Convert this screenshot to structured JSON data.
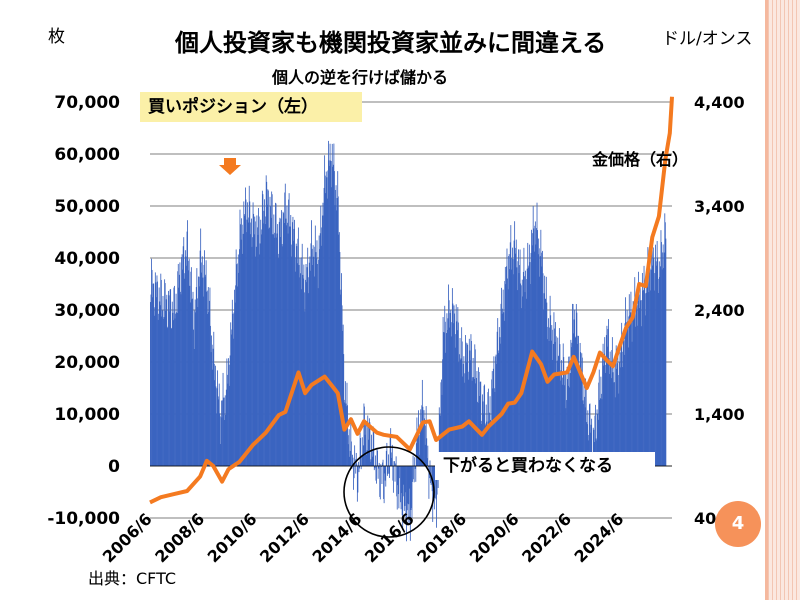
{
  "header": {
    "unit_left": "枚",
    "unit_right": "ドル/オンス",
    "title": "個人投資家も機関投資家並みに間違える",
    "subtitle": "個人の逆を行けば儲かる"
  },
  "annotations": {
    "buy_position_label": "買いポジション（左）",
    "gold_price_label": "金価格（右）",
    "dip_label": "下がると買わなくなる"
  },
  "footer": {
    "source": "出典：CFTC",
    "page_number": "4"
  },
  "colors": {
    "bars": "#3b64c0",
    "line": "#f47a20",
    "grid": "#000000",
    "callout_bg": "#fbf0a8",
    "accent": "#f6925a"
  },
  "chart_data": {
    "type": "bar",
    "x_tick_labels": [
      "2006/6",
      "2008/6",
      "2010/6",
      "2012/6",
      "2014/6",
      "2016/6",
      "2018/6",
      "2020/6",
      "2022/6",
      "2024/6"
    ],
    "x_range": [
      "2006-01",
      "2025-12"
    ],
    "y_left": {
      "label": "枚",
      "min": -10000,
      "max": 70000,
      "ticks": [
        -10000,
        0,
        10000,
        20000,
        30000,
        40000,
        50000,
        60000,
        70000
      ],
      "tick_labels": [
        "-10,000",
        "0",
        "10,000",
        "20,000",
        "30,000",
        "40,000",
        "50,000",
        "60,000",
        "70,000"
      ]
    },
    "y_right": {
      "label": "ドル/オンス",
      "min": 400,
      "max": 4400,
      "ticks": [
        400,
        1400,
        2400,
        3400,
        4400
      ],
      "tick_labels": [
        "400",
        "1,400",
        "2,400",
        "3,400",
        "4,400"
      ]
    },
    "series": [
      {
        "name": "買いポジション（左）",
        "type": "bar",
        "axis": "left",
        "points": [
          [
            "2006-01",
            35000
          ],
          [
            "2006-06",
            32000
          ],
          [
            "2006-12",
            30000
          ],
          [
            "2007-03",
            38000
          ],
          [
            "2007-06",
            42000
          ],
          [
            "2007-09",
            28000
          ],
          [
            "2007-12",
            40000
          ],
          [
            "2008-03",
            35000
          ],
          [
            "2008-06",
            20000
          ],
          [
            "2008-09",
            10000
          ],
          [
            "2008-12",
            15000
          ],
          [
            "2009-03",
            30000
          ],
          [
            "2009-06",
            44000
          ],
          [
            "2009-09",
            50000
          ],
          [
            "2009-12",
            46000
          ],
          [
            "2010-03",
            45000
          ],
          [
            "2010-06",
            52000
          ],
          [
            "2010-09",
            48000
          ],
          [
            "2010-12",
            44000
          ],
          [
            "2011-03",
            50000
          ],
          [
            "2011-06",
            45000
          ],
          [
            "2011-09",
            40000
          ],
          [
            "2011-12",
            35000
          ],
          [
            "2012-03",
            42000
          ],
          [
            "2012-06",
            40000
          ],
          [
            "2012-09",
            55000
          ],
          [
            "2012-12",
            60000
          ],
          [
            "2013-03",
            50000
          ],
          [
            "2013-06",
            15000
          ],
          [
            "2013-09",
            2000
          ],
          [
            "2013-12",
            -2000
          ],
          [
            "2014-03",
            8000
          ],
          [
            "2014-06",
            5000
          ],
          [
            "2014-09",
            -1000
          ],
          [
            "2014-12",
            -3000
          ],
          [
            "2015-03",
            3000
          ],
          [
            "2015-06",
            -4000
          ],
          [
            "2015-09",
            -8000
          ],
          [
            "2015-12",
            -10000
          ],
          [
            "2016-03",
            5000
          ],
          [
            "2016-06",
            12000
          ],
          [
            "2016-09",
            -3000
          ],
          [
            "2016-12",
            -8000
          ],
          [
            "2017-03",
            25000
          ],
          [
            "2017-06",
            30000
          ],
          [
            "2017-09",
            28000
          ],
          [
            "2017-12",
            20000
          ],
          [
            "2018-03",
            22000
          ],
          [
            "2018-06",
            18000
          ],
          [
            "2018-09",
            12000
          ],
          [
            "2018-12",
            10000
          ],
          [
            "2019-03",
            20000
          ],
          [
            "2019-06",
            30000
          ],
          [
            "2019-09",
            40000
          ],
          [
            "2019-12",
            42000
          ],
          [
            "2020-03",
            35000
          ],
          [
            "2020-06",
            38000
          ],
          [
            "2020-09",
            47000
          ],
          [
            "2020-12",
            40000
          ],
          [
            "2021-03",
            28000
          ],
          [
            "2021-06",
            25000
          ],
          [
            "2021-09",
            20000
          ],
          [
            "2021-12",
            15000
          ],
          [
            "2022-03",
            30000
          ],
          [
            "2022-06",
            20000
          ],
          [
            "2022-09",
            10000
          ],
          [
            "2022-12",
            5000
          ],
          [
            "2023-03",
            15000
          ],
          [
            "2023-06",
            25000
          ],
          [
            "2023-09",
            18000
          ],
          [
            "2023-12",
            20000
          ],
          [
            "2024-03",
            28000
          ],
          [
            "2024-06",
            30000
          ],
          [
            "2024-09",
            32000
          ],
          [
            "2024-12",
            35000
          ],
          [
            "2025-03",
            40000
          ],
          [
            "2025-06",
            38000
          ],
          [
            "2025-09",
            45000
          ]
        ]
      },
      {
        "name": "金価格（右）",
        "type": "line",
        "axis": "right",
        "points": [
          [
            "2006-01",
            550
          ],
          [
            "2006-06",
            600
          ],
          [
            "2006-12",
            630
          ],
          [
            "2007-06",
            660
          ],
          [
            "2007-12",
            800
          ],
          [
            "2008-03",
            950
          ],
          [
            "2008-06",
            900
          ],
          [
            "2008-10",
            750
          ],
          [
            "2009-01",
            870
          ],
          [
            "2009-06",
            940
          ],
          [
            "2009-12",
            1100
          ],
          [
            "2010-06",
            1220
          ],
          [
            "2010-12",
            1390
          ],
          [
            "2011-03",
            1420
          ],
          [
            "2011-09",
            1800
          ],
          [
            "2011-12",
            1600
          ],
          [
            "2012-03",
            1680
          ],
          [
            "2012-09",
            1760
          ],
          [
            "2012-12",
            1680
          ],
          [
            "2013-03",
            1600
          ],
          [
            "2013-06",
            1250
          ],
          [
            "2013-09",
            1350
          ],
          [
            "2013-12",
            1210
          ],
          [
            "2014-03",
            1330
          ],
          [
            "2014-09",
            1220
          ],
          [
            "2014-12",
            1200
          ],
          [
            "2015-06",
            1180
          ],
          [
            "2015-12",
            1060
          ],
          [
            "2016-06",
            1320
          ],
          [
            "2016-09",
            1330
          ],
          [
            "2016-12",
            1150
          ],
          [
            "2017-06",
            1250
          ],
          [
            "2017-12",
            1280
          ],
          [
            "2018-03",
            1330
          ],
          [
            "2018-09",
            1200
          ],
          [
            "2018-12",
            1280
          ],
          [
            "2019-06",
            1400
          ],
          [
            "2019-09",
            1500
          ],
          [
            "2019-12",
            1510
          ],
          [
            "2020-03",
            1600
          ],
          [
            "2020-08",
            2000
          ],
          [
            "2020-12",
            1880
          ],
          [
            "2021-03",
            1710
          ],
          [
            "2021-06",
            1780
          ],
          [
            "2021-12",
            1800
          ],
          [
            "2022-03",
            1950
          ],
          [
            "2022-09",
            1650
          ],
          [
            "2022-12",
            1800
          ],
          [
            "2023-03",
            1990
          ],
          [
            "2023-06",
            1920
          ],
          [
            "2023-09",
            1860
          ],
          [
            "2023-12",
            2050
          ],
          [
            "2024-03",
            2230
          ],
          [
            "2024-06",
            2330
          ],
          [
            "2024-09",
            2650
          ],
          [
            "2024-12",
            2630
          ],
          [
            "2025-03",
            3100
          ],
          [
            "2025-06",
            3300
          ],
          [
            "2025-09",
            3850
          ],
          [
            "2025-11",
            4100
          ],
          [
            "2025-12",
            4450
          ]
        ]
      }
    ]
  }
}
